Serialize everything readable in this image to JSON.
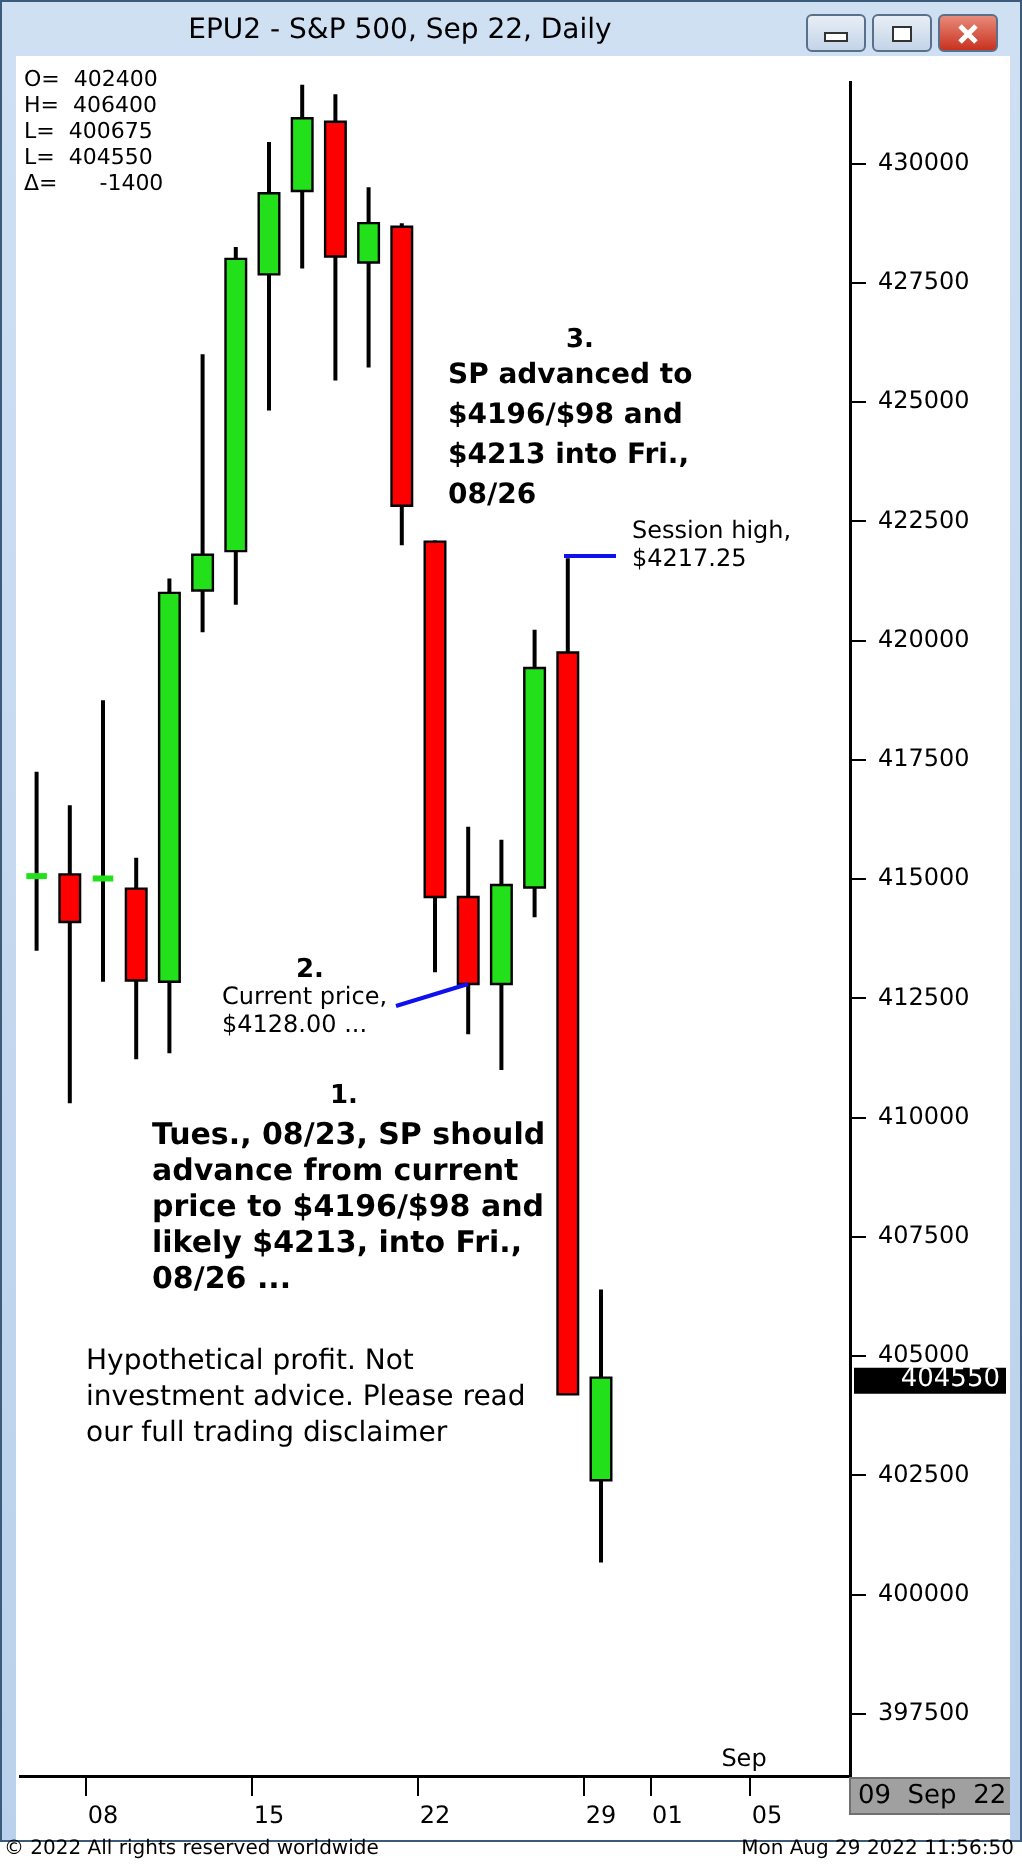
{
  "chart_data": {
    "type": "candlestick",
    "title": "EPU2 - S&P 500, Sep 22, Daily",
    "categories": [
      null,
      null,
      "08",
      null,
      null,
      null,
      null,
      "15",
      null,
      null,
      null,
      null,
      "22",
      null,
      null,
      null,
      null,
      "29",
      null,
      "01",
      null,
      null,
      "05",
      null,
      null
    ],
    "ohlc": [
      [
        415000,
        417250,
        413500,
        415025
      ],
      [
        415100,
        416550,
        410300,
        414100
      ],
      [
        414950,
        418750,
        412850,
        415000
      ],
      [
        414800,
        415450,
        411225,
        412875
      ],
      [
        412850,
        421300,
        411350,
        421000
      ],
      [
        421050,
        426000,
        420175,
        421800
      ],
      [
        421875,
        428250,
        420750,
        428000
      ],
      [
        427675,
        430450,
        424825,
        429375
      ],
      [
        429425,
        431650,
        427800,
        430950
      ],
      [
        430875,
        431450,
        425450,
        428050
      ],
      [
        427925,
        429500,
        425725,
        428750
      ],
      [
        428675,
        428750,
        422000,
        422825
      ],
      [
        422075,
        422100,
        413050,
        414625
      ],
      [
        414625,
        416100,
        411750,
        412800
      ],
      [
        412800,
        415825,
        411000,
        414875
      ],
      [
        414825,
        420225,
        414200,
        419425
      ],
      [
        419750,
        421725,
        404200,
        404200
      ],
      [
        402400,
        406400,
        400675,
        404550
      ],
      null,
      null,
      null,
      null,
      null,
      null,
      null
    ],
    "colors": [
      "#22e01a",
      "#ff0000",
      "#22e01a",
      "#ff0000",
      "#22e01a",
      "#22e01a",
      "#22e01a",
      "#22e01a",
      "#22e01a",
      "#ff0000",
      "#22e01a",
      "#ff0000",
      "#ff0000",
      "#ff0000",
      "#22e01a",
      "#22e01a",
      "#ff0000",
      "#22e01a",
      null,
      null,
      null,
      null,
      null,
      null,
      null
    ],
    "ylim": [
      396200,
      431700
    ],
    "yticks": [
      397500,
      400000,
      402500,
      405000,
      407500,
      410000,
      412500,
      415000,
      417500,
      420000,
      422500,
      425000,
      427500,
      430000
    ],
    "annotations": [
      "O=  402400",
      "H=  406400",
      "L=  400675",
      "L=  404550",
      "Δ=      -1400",
      "3.",
      "SP advanced to $4196/$98 and $4213 into Fri., 08/26",
      "Session high, $4217.25",
      "2.",
      "Current price, $4128.00 ...",
      "1.",
      "Tues., 08/23, SP should advance from current price to $4196/$98 and likely $4213, into Fri., 08/26 ...",
      "Hypothetical profit. Not investment advice. Please read our full trading disclaimer",
      "Sep",
      "09  Sep  22",
      "404550",
      "© 2022 All rights reserved worldwide",
      "Mon Aug 29 2022 11:56:50"
    ]
  }
}
